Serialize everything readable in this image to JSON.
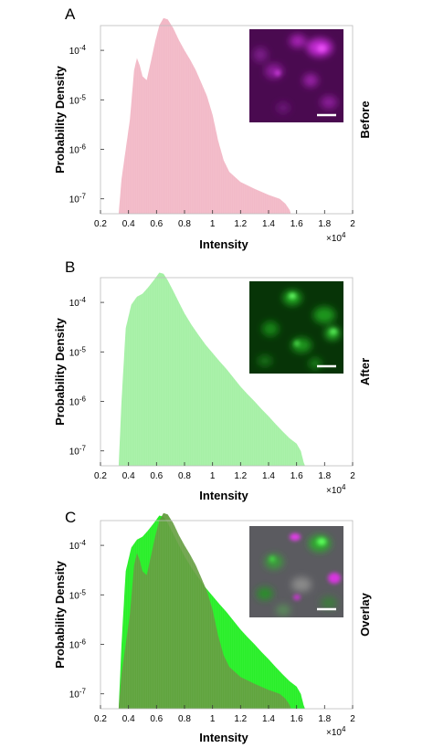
{
  "chart_data": [
    {
      "type": "area",
      "panel_letter": "A",
      "side_label": "Before",
      "xlabel": "Intensity",
      "ylabel": "Probability Density",
      "x_multiplier_base": "×10",
      "x_multiplier_exp": "4",
      "x_ticks": [
        "0.2",
        "0.4",
        "0.6",
        "0.8",
        "1",
        "1.2",
        "1.4",
        "1.6",
        "1.8",
        "2"
      ],
      "y_ticks": [
        {
          "base": "10",
          "exp": "-7"
        },
        {
          "base": "10",
          "exp": "-6"
        },
        {
          "base": "10",
          "exp": "-5"
        },
        {
          "base": "10",
          "exp": "-4"
        }
      ],
      "xlim": [
        0.2,
        2.0
      ],
      "ylim_log10": [
        -7.3,
        -3.5
      ],
      "y_scale": "log",
      "grid": false,
      "series": [
        {
          "color": "#f2b8c6",
          "x": [
            0.33,
            0.35,
            0.38,
            0.41,
            0.44,
            0.46,
            0.48,
            0.5,
            0.53,
            0.56,
            0.59,
            0.62,
            0.65,
            0.68,
            0.72,
            0.76,
            0.8,
            0.84,
            0.88,
            0.92,
            0.96,
            1.0,
            1.04,
            1.08,
            1.12,
            1.2,
            1.3,
            1.4,
            1.48,
            1.52,
            1.55,
            1.56
          ],
          "y": [
            5e-08,
            2.5e-07,
            1e-06,
            4e-06,
            4e-05,
            7e-05,
            5e-05,
            3e-05,
            2.5e-05,
            6e-05,
            0.00015,
            0.00032,
            0.00045,
            0.00042,
            0.00028,
            0.00016,
            0.0001,
            6.5e-05,
            4e-05,
            2.2e-05,
            1.2e-05,
            5e-06,
            1.5e-06,
            6e-07,
            3.5e-07,
            2.2e-07,
            1.6e-07,
            1.2e-07,
            1e-07,
            8e-08,
            6e-08,
            5e-08
          ]
        }
      ],
      "inset": {
        "name": "before-inset",
        "tone": "magenta"
      }
    },
    {
      "type": "area",
      "panel_letter": "B",
      "side_label": "After",
      "xlabel": "Intensity",
      "ylabel": "Probability Density",
      "x_multiplier_base": "×10",
      "x_multiplier_exp": "4",
      "x_ticks": [
        "0.2",
        "0.4",
        "0.6",
        "0.8",
        "1",
        "1.2",
        "1.4",
        "1.6",
        "1.8",
        "2"
      ],
      "y_ticks": [
        {
          "base": "10",
          "exp": "-7"
        },
        {
          "base": "10",
          "exp": "-6"
        },
        {
          "base": "10",
          "exp": "-5"
        },
        {
          "base": "10",
          "exp": "-4"
        }
      ],
      "xlim": [
        0.2,
        2.0
      ],
      "ylim_log10": [
        -7.3,
        -3.5
      ],
      "y_scale": "log",
      "grid": false,
      "series": [
        {
          "color": "#a3f0a3",
          "x": [
            0.33,
            0.35,
            0.38,
            0.42,
            0.46,
            0.5,
            0.54,
            0.58,
            0.62,
            0.65,
            0.68,
            0.72,
            0.76,
            0.8,
            0.85,
            0.9,
            0.95,
            1.0,
            1.05,
            1.1,
            1.15,
            1.2,
            1.25,
            1.3,
            1.35,
            1.4,
            1.45,
            1.5,
            1.55,
            1.6,
            1.63,
            1.65,
            1.66
          ],
          "y": [
            5e-08,
            1e-06,
            3e-05,
            9e-05,
            0.00013,
            0.00015,
            0.0002,
            0.00028,
            0.0004,
            0.00038,
            0.00028,
            0.00017,
            0.0001,
            6e-05,
            3.5e-05,
            2.2e-05,
            1.4e-05,
            9.5e-06,
            6.5e-06,
            4.5e-06,
            3e-06,
            2e-06,
            1.4e-06,
            1e-06,
            7e-07,
            5e-07,
            3.5e-07,
            2.5e-07,
            1.8e-07,
            1.4e-07,
            1e-07,
            6e-08,
            5e-08
          ]
        }
      ],
      "inset": {
        "name": "after-inset",
        "tone": "green"
      }
    },
    {
      "type": "area",
      "panel_letter": "C",
      "side_label": "Overlay",
      "xlabel": "Intensity",
      "ylabel": "Probability Density",
      "x_multiplier_base": "×10",
      "x_multiplier_exp": "4",
      "x_ticks": [
        "0.2",
        "0.4",
        "0.6",
        "0.8",
        "1",
        "1.2",
        "1.4",
        "1.6",
        "1.8",
        "2"
      ],
      "y_ticks": [
        {
          "base": "10",
          "exp": "-7"
        },
        {
          "base": "10",
          "exp": "-6"
        },
        {
          "base": "10",
          "exp": "-5"
        },
        {
          "base": "10",
          "exp": "-4"
        }
      ],
      "xlim": [
        0.2,
        2.0
      ],
      "ylim_log10": [
        -7.3,
        -3.5
      ],
      "y_scale": "log",
      "grid": false,
      "series": [
        {
          "color": "#22ee22",
          "x": [
            0.33,
            0.35,
            0.38,
            0.42,
            0.46,
            0.5,
            0.54,
            0.58,
            0.62,
            0.65,
            0.68,
            0.72,
            0.76,
            0.8,
            0.85,
            0.9,
            0.95,
            1.0,
            1.05,
            1.1,
            1.15,
            1.2,
            1.25,
            1.3,
            1.35,
            1.4,
            1.45,
            1.5,
            1.55,
            1.6,
            1.63,
            1.65,
            1.66
          ],
          "y": [
            5e-08,
            1e-06,
            3e-05,
            9e-05,
            0.00013,
            0.00015,
            0.0002,
            0.00028,
            0.0004,
            0.00038,
            0.00028,
            0.00017,
            0.0001,
            6e-05,
            3.5e-05,
            2.2e-05,
            1.4e-05,
            9.5e-06,
            6.5e-06,
            4.5e-06,
            3e-06,
            2e-06,
            1.4e-06,
            1e-06,
            7e-07,
            5e-07,
            3.5e-07,
            2.5e-07,
            1.8e-07,
            1.4e-07,
            1e-07,
            6e-08,
            5e-08
          ]
        },
        {
          "color": "#5f9a3a",
          "x": [
            0.33,
            0.35,
            0.38,
            0.41,
            0.44,
            0.46,
            0.48,
            0.5,
            0.53,
            0.56,
            0.59,
            0.62,
            0.65,
            0.68,
            0.72,
            0.76,
            0.8,
            0.84,
            0.88,
            0.92,
            0.96,
            1.0,
            1.04,
            1.08,
            1.12,
            1.2,
            1.3,
            1.4,
            1.48,
            1.52,
            1.55,
            1.56
          ],
          "y": [
            5e-08,
            2.5e-07,
            1e-06,
            4e-06,
            4e-05,
            7e-05,
            5e-05,
            3e-05,
            2.5e-05,
            6e-05,
            0.00015,
            0.00032,
            0.00045,
            0.00042,
            0.00028,
            0.00016,
            0.0001,
            6.5e-05,
            4e-05,
            2.2e-05,
            1.2e-05,
            5e-06,
            1.5e-06,
            6e-07,
            3.5e-07,
            2.2e-07,
            1.6e-07,
            1.2e-07,
            1e-07,
            8e-08,
            6e-08,
            5e-08
          ]
        }
      ],
      "inset": {
        "name": "overlay-inset",
        "tone": "overlay"
      }
    }
  ]
}
